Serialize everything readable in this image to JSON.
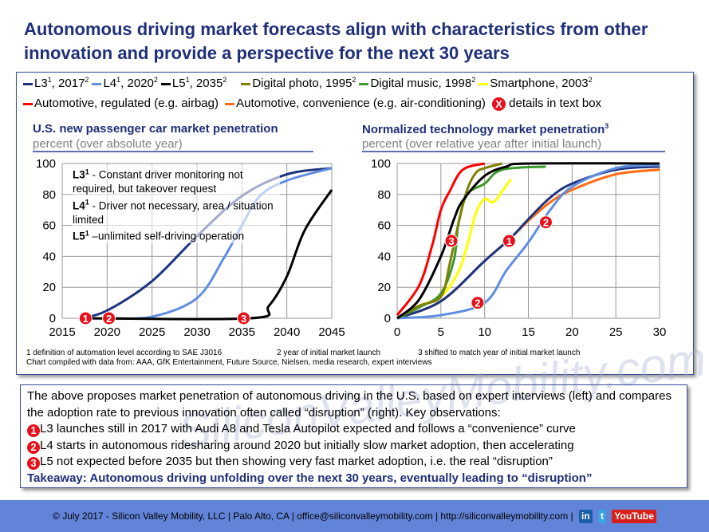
{
  "title": "Autonomous driving market forecasts align with characteristics from other innovation and provide a perspective for the next 30 years",
  "legend": {
    "row1": [
      {
        "label": "L3",
        "sup1": "1",
        "rest": ", 2017",
        "sup2": "2",
        "color": "#1f3480"
      },
      {
        "label": "L4",
        "sup1": "1",
        "rest": ", 2020",
        "sup2": "2",
        "color": "#5f8ee0"
      },
      {
        "label": "L5",
        "sup1": "1",
        "rest": ", 2035",
        "sup2": "2",
        "color": "#000000"
      },
      {
        "label": "Digital photo",
        "sup1": "",
        "rest": ", 1995",
        "sup2": "2",
        "color": "#808000"
      },
      {
        "label": "Digital music",
        "sup1": "",
        "rest": ", 1998",
        "sup2": "2",
        "color": "#3a9a2a"
      },
      {
        "label": "Smartphone",
        "sup1": "",
        "rest": ", 2003",
        "sup2": "2",
        "color": "#ffff00"
      }
    ],
    "row2": [
      {
        "label": "Automotive, regulated (e.g. airbag)",
        "color": "#ff0000"
      },
      {
        "label": "Automotive, convenience (e.g. air-conditioning)",
        "color": "#ff6a10"
      }
    ],
    "badge_glyph": "X",
    "badge_label": "details in text box"
  },
  "chart_data": [
    {
      "type": "line",
      "title": "U.S. new passenger car market penetration",
      "subtitle": "percent (over absolute year)",
      "xlim": [
        2015,
        2045
      ],
      "ylim": [
        0,
        100
      ],
      "xticks": [
        2015,
        2020,
        2025,
        2030,
        2035,
        2040,
        2045
      ],
      "yticks": [
        0,
        20,
        40,
        60,
        80,
        100
      ],
      "grid": true,
      "annotation": [
        {
          "bold": "L3",
          "sup": "1",
          "text": " - Constant driver monitoring not required, but takeover request"
        },
        {
          "bold": "L4",
          "sup": "1",
          "text": " - Driver not necessary, area / situation limited"
        },
        {
          "bold": "L5",
          "sup": "1",
          "text": " –unlimited self-driving operation"
        }
      ],
      "series": [
        {
          "name": "L3",
          "color": "#1f3480",
          "x": [
            2017,
            2020,
            2025,
            2030,
            2035,
            2040,
            2045
          ],
          "y": [
            0,
            5,
            24,
            53,
            79,
            93,
            97
          ]
        },
        {
          "name": "L4",
          "color": "#5f8ee0",
          "x": [
            2020,
            2025,
            2030,
            2033,
            2035,
            2037,
            2040,
            2045
          ],
          "y": [
            0,
            1,
            13,
            39,
            60,
            79,
            89,
            97
          ]
        },
        {
          "name": "L5",
          "color": "#000000",
          "x": [
            2017,
            2036,
            2038,
            2040,
            2042,
            2045
          ],
          "y": [
            0,
            0,
            8,
            27,
            57,
            83
          ]
        }
      ],
      "markers": [
        {
          "label": "1",
          "x": 2017.6,
          "y": 0
        },
        {
          "label": "2",
          "x": 2020.2,
          "y": 0
        },
        {
          "label": "3",
          "x": 2035.2,
          "y": 0
        }
      ]
    },
    {
      "type": "line",
      "title": "Normalized technology market penetration",
      "title_sup": "3",
      "subtitle": "percent (over relative year after initial launch)",
      "xlim": [
        0,
        30
      ],
      "ylim": [
        0,
        100
      ],
      "xticks": [
        0,
        5,
        10,
        15,
        20,
        25,
        30
      ],
      "yticks": [
        0,
        20,
        40,
        60,
        80,
        100
      ],
      "grid": true,
      "series": [
        {
          "name": "Automotive, convenience (e.g. air-conditioning)",
          "color": "#ff6a10",
          "x": [
            0,
            5,
            10,
            13,
            15,
            17.5,
            20,
            25,
            30
          ],
          "y": [
            0,
            11,
            37,
            52,
            63,
            75,
            83,
            93,
            96
          ]
        },
        {
          "name": "L3",
          "color": "#1f3480",
          "x": [
            0,
            5,
            10,
            13,
            15,
            17.5,
            20,
            25,
            30
          ],
          "y": [
            0,
            11,
            37,
            52,
            64,
            78,
            87,
            96,
            98
          ]
        },
        {
          "name": "L4",
          "color": "#5f8ee0",
          "x": [
            0,
            5,
            10,
            12.5,
            15,
            17.5,
            20,
            25,
            30
          ],
          "y": [
            0,
            2,
            10,
            31,
            49,
            70,
            85,
            97,
            99
          ]
        },
        {
          "name": "Smartphone",
          "color": "#ffff00",
          "x": [
            0,
            2.5,
            5,
            7,
            8,
            9,
            10,
            11,
            12,
            13
          ],
          "y": [
            0,
            8,
            14,
            30,
            47,
            68,
            77,
            75,
            82,
            90
          ]
        },
        {
          "name": "Digital music",
          "color": "#3a9a2a",
          "x": [
            0,
            2.5,
            5,
            6.5,
            7,
            8,
            10,
            12,
            17
          ],
          "y": [
            0,
            7,
            16,
            38,
            61,
            80,
            87,
            96,
            98
          ]
        },
        {
          "name": "Digital photo",
          "color": "#808000",
          "x": [
            0,
            2.5,
            5,
            6,
            7,
            8,
            9,
            10,
            12
          ],
          "y": [
            0,
            8,
            14,
            35,
            61,
            83,
            94,
            97,
            100
          ]
        },
        {
          "name": "L5",
          "color": "#000000",
          "x": [
            0,
            2.5,
            5,
            6.5,
            7.5,
            10,
            12.5,
            15,
            30
          ],
          "y": [
            0,
            12,
            40,
            64,
            76,
            92,
            98,
            100,
            100
          ]
        },
        {
          "name": "Automotive, regulated (e.g. airbag)",
          "color": "#ff0000",
          "x": [
            0,
            2.5,
            4,
            5,
            6,
            7.5,
            10
          ],
          "y": [
            2,
            21,
            47,
            70,
            82,
            96,
            100
          ]
        }
      ],
      "markers": [
        {
          "label": "3",
          "x": 6.2,
          "y": 50
        },
        {
          "label": "1",
          "x": 12.8,
          "y": 50
        },
        {
          "label": "2",
          "x": 17,
          "y": 62
        },
        {
          "label": "2",
          "x": 9.2,
          "y": 10
        }
      ]
    }
  ],
  "footnotes": {
    "f1": "1 definition of automation level according to SAE J3016",
    "f2": "2 year of initial market launch",
    "f3": "3 shifted to match year of initial market launch",
    "source": "Chart compiled with data from: AAA, GfK Entertainment, Future Source, Nielsen, media research, expert interviews"
  },
  "textbox": {
    "intro": "The above proposes market penetration of autonomous driving in the U.S. based on expert interviews (left) and compares the adoption rate to previous innovation often called “disruption” (right). Key observations:",
    "points": [
      {
        "n": "1",
        "text": "L3 launches still in 2017 with Audi A8 and Tesla Autopilot expected and follows a “convenience” curve"
      },
      {
        "n": "2",
        "text": "L4 starts in autonomous ridesharing around 2020 but initially slow market adoption, then accelerating"
      },
      {
        "n": "3",
        "text": "L5 not expected before 2035 but then showing very fast market adoption, i.e. the real “disruption”"
      }
    ],
    "takeaway": "Takeaway: Autonomous driving unfolding over the next 30 years, eventually leading to “disruption”"
  },
  "watermark": "SiliconValleyMobility.com",
  "footer": {
    "text": "© July 2017 - Silicon Valley Mobility, LLC | Palo Alto, CA | office@siliconvalleymobility.com | http://siliconvalleymobility.com |",
    "linkedin": "in",
    "twitter": "t",
    "youtube": "YouTube"
  }
}
